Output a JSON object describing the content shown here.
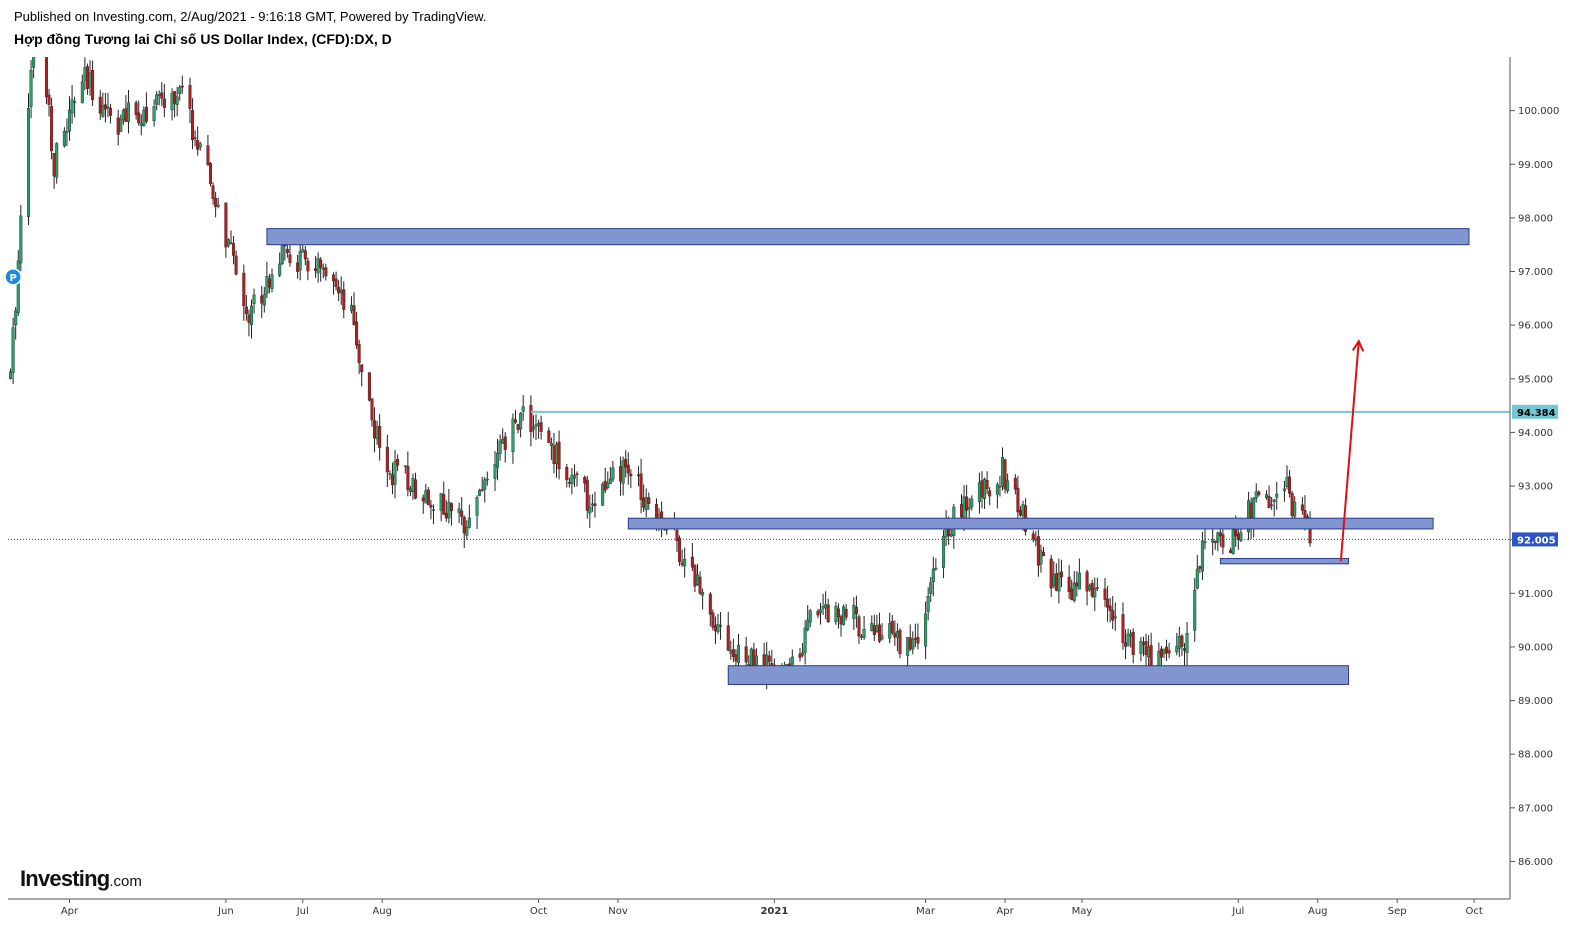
{
  "header": {
    "published": "Published on Investing.com, 2/Aug/2021 - 9:16:18 GMT, Powered by TradingView.",
    "title": "Hợp đồng Tương lai Chỉ số US Dollar Index, (CFD):DX, D"
  },
  "logo": {
    "brand": "Investing",
    "suffix": ".com"
  },
  "colors": {
    "up": "#26a269",
    "down": "#b71c1c",
    "zone_fill": "#8195d0",
    "zone_border": "#2a3c8a",
    "resistance_line": "#71c7d3",
    "current_price_line": "#1a3fbf",
    "arrow": "#e01010"
  },
  "chart_data": {
    "type": "candlestick",
    "symbol": "DX",
    "timeframe": "D",
    "y_axis": {
      "ylim": [
        85.3,
        101.0
      ],
      "ticks": [
        "86.000",
        "87.000",
        "88.000",
        "89.000",
        "90.000",
        "91.000",
        "92.000",
        "93.000",
        "94.000",
        "95.000",
        "96.000",
        "97.000",
        "98.000",
        "99.000",
        "100.000"
      ]
    },
    "x_axis": {
      "range": [
        "2020-03-08",
        "2021-10-15"
      ],
      "ticks": [
        {
          "label": "Apr",
          "date": "2020-04-01"
        },
        {
          "label": "Jun",
          "date": "2020-06-01"
        },
        {
          "label": "Jul",
          "date": "2020-07-01"
        },
        {
          "label": "Aug",
          "date": "2020-08-01"
        },
        {
          "label": "Oct",
          "date": "2020-10-01"
        },
        {
          "label": "Nov",
          "date": "2020-11-01"
        },
        {
          "label": "2021",
          "date": "2021-01-01",
          "bold": true
        },
        {
          "label": "Mar",
          "date": "2021-03-01"
        },
        {
          "label": "Apr",
          "date": "2021-04-01"
        },
        {
          "label": "May",
          "date": "2021-05-01"
        },
        {
          "label": "Jul",
          "date": "2021-07-01"
        },
        {
          "label": "Aug",
          "date": "2021-08-01"
        },
        {
          "label": "Sep",
          "date": "2021-09-01"
        },
        {
          "label": "Oct",
          "date": "2021-10-01"
        }
      ]
    },
    "price_path": [
      {
        "date": "2020-03-09",
        "close": 95.0
      },
      {
        "date": "2020-03-19",
        "close": 102.5
      },
      {
        "date": "2020-03-26",
        "close": 99.0
      },
      {
        "date": "2020-04-06",
        "close": 100.6
      },
      {
        "date": "2020-04-20",
        "close": 99.8
      },
      {
        "date": "2020-05-15",
        "close": 100.3
      },
      {
        "date": "2020-06-10",
        "close": 96.2
      },
      {
        "date": "2020-06-22",
        "close": 97.3
      },
      {
        "date": "2020-07-06",
        "close": 97.1
      },
      {
        "date": "2020-07-20",
        "close": 96.1
      },
      {
        "date": "2020-08-01",
        "close": 93.4
      },
      {
        "date": "2020-08-20",
        "close": 92.8
      },
      {
        "date": "2020-09-01",
        "close": 92.3
      },
      {
        "date": "2020-09-25",
        "close": 94.4
      },
      {
        "date": "2020-10-21",
        "close": 92.7
      },
      {
        "date": "2020-11-04",
        "close": 93.3
      },
      {
        "date": "2020-11-20",
        "close": 92.3
      },
      {
        "date": "2020-12-17",
        "close": 89.8
      },
      {
        "date": "2021-01-06",
        "close": 89.5
      },
      {
        "date": "2021-01-18",
        "close": 90.8
      },
      {
        "date": "2021-02-25",
        "close": 90.0
      },
      {
        "date": "2021-03-10",
        "close": 92.3
      },
      {
        "date": "2021-03-31",
        "close": 93.3
      },
      {
        "date": "2021-04-20",
        "close": 91.1
      },
      {
        "date": "2021-05-04",
        "close": 91.2
      },
      {
        "date": "2021-05-25",
        "close": 89.8
      },
      {
        "date": "2021-06-10",
        "close": 90.1
      },
      {
        "date": "2021-06-18",
        "close": 92.2
      },
      {
        "date": "2021-06-25",
        "close": 91.8
      },
      {
        "date": "2021-07-07",
        "close": 92.6
      },
      {
        "date": "2021-07-20",
        "close": 92.9
      },
      {
        "date": "2021-07-30",
        "close": 92.0
      }
    ],
    "price_labels": [
      {
        "value": 94.384,
        "label": "94.384",
        "kind": "resistance_line"
      },
      {
        "value": 92.005,
        "label": "92.005",
        "kind": "current_price"
      }
    ],
    "zones": [
      {
        "from": "2020-06-17",
        "to": "2021-09-29",
        "low": 97.5,
        "high": 97.8
      },
      {
        "from": "2020-11-05",
        "to": "2021-09-15",
        "low": 92.2,
        "high": 92.4
      },
      {
        "from": "2020-12-14",
        "to": "2021-08-13",
        "low": 89.3,
        "high": 89.65
      },
      {
        "from": "2021-06-24",
        "to": "2021-08-13",
        "low": 91.55,
        "high": 91.65
      }
    ],
    "projection_arrow": {
      "from": {
        "date": "2021-08-10",
        "value": 91.6
      },
      "to": {
        "date": "2021-08-17",
        "value": 95.7
      }
    },
    "marker": {
      "date": "2020-03-10",
      "value": 96.9,
      "label": "P"
    }
  }
}
